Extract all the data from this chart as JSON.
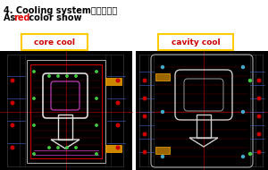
{
  "title_line1": "4. Cooling system（冷却）：",
  "title_line2_prefix": "As ",
  "title_line2_red": "red",
  "title_line2_suffix": " color show",
  "label_left": "core cool",
  "label_right": "cavity cool",
  "bg_color": "#ffffff",
  "label_border_color": "#ffcc00",
  "label_text_color": "#cc0000",
  "title_color": "#000000",
  "red_color": "#dd0000",
  "cad_bg": "#000000",
  "fig_w": 3.0,
  "fig_h": 1.9,
  "dpi": 100
}
